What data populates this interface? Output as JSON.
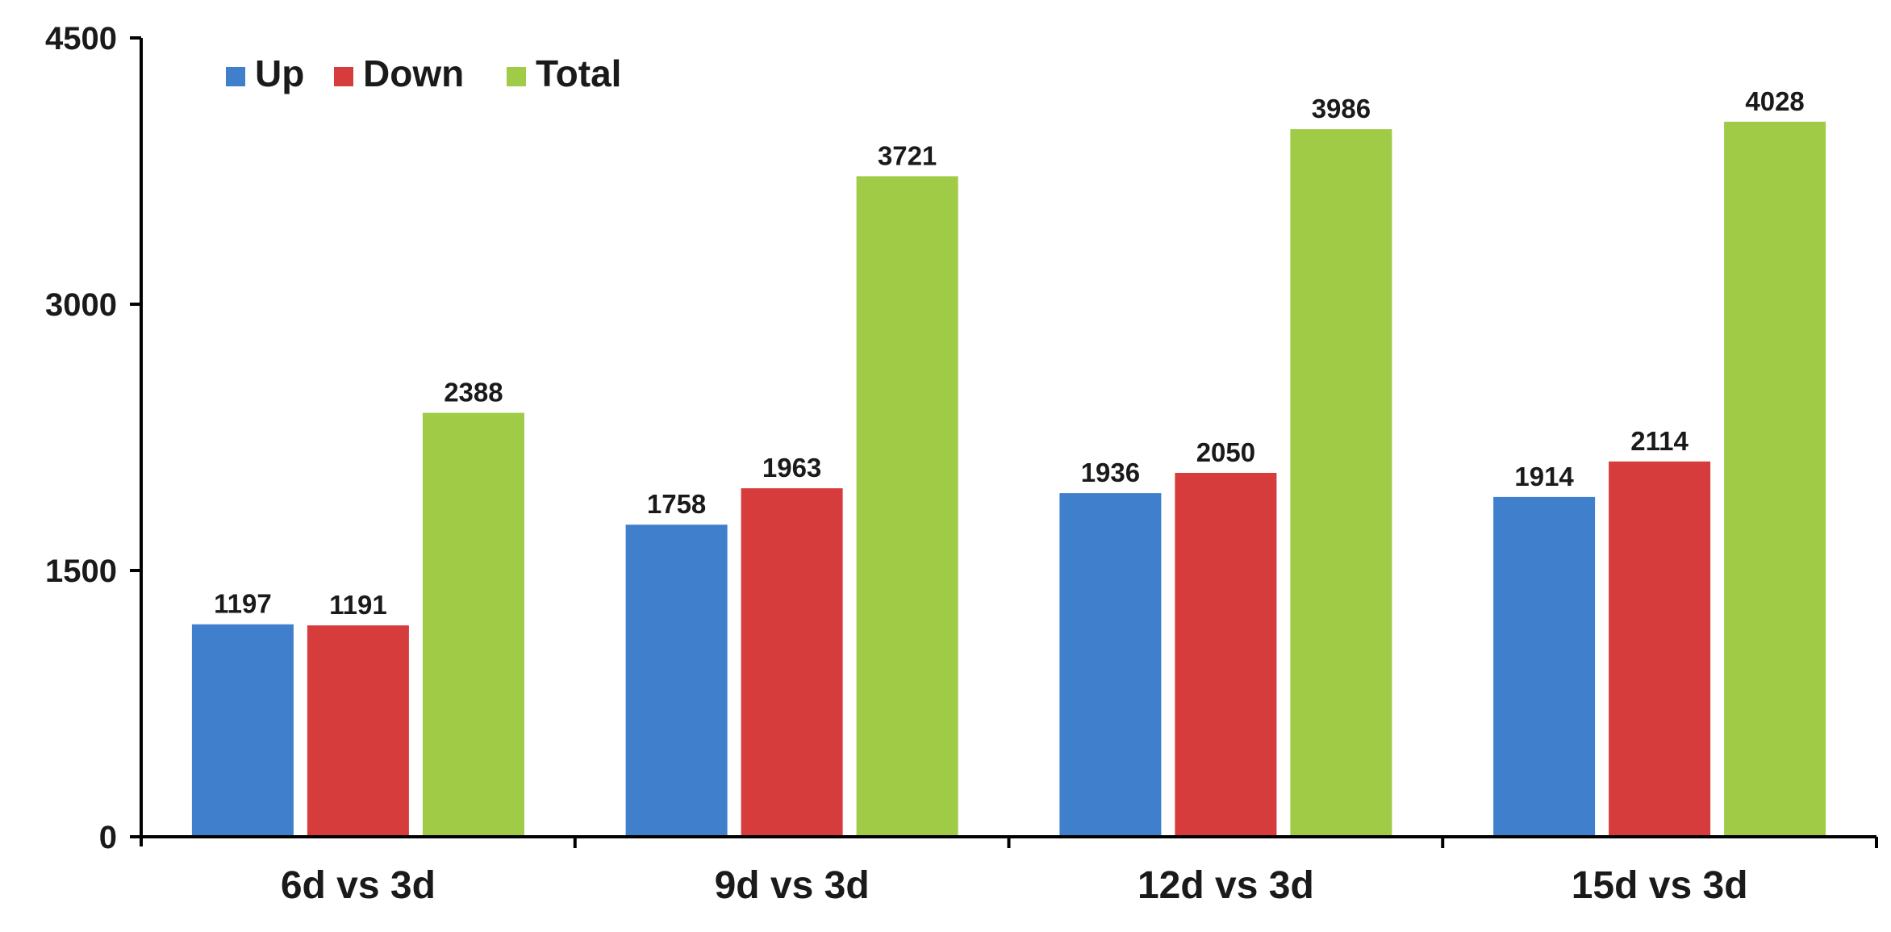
{
  "chart_data": {
    "type": "bar",
    "title": "",
    "xlabel": "",
    "ylabel": "",
    "categories": [
      "6d vs 3d",
      "9d vs 3d",
      "12d vs 3d",
      "15d vs 3d"
    ],
    "series": [
      {
        "name": "Up",
        "color": "#3f7fcc",
        "values": [
          1197,
          1758,
          1936,
          1914
        ]
      },
      {
        "name": "Down",
        "color": "#d63c3c",
        "values": [
          1191,
          1963,
          2050,
          2114
        ]
      },
      {
        "name": "Total",
        "color": "#9fcb47",
        "values": [
          2388,
          3721,
          3986,
          4028
        ]
      }
    ],
    "ylim": [
      0,
      4500
    ],
    "yticks": [
      "0",
      "1500",
      "3000",
      "4500"
    ],
    "grid": false,
    "legend_position": "top-left",
    "data_labels": true
  }
}
